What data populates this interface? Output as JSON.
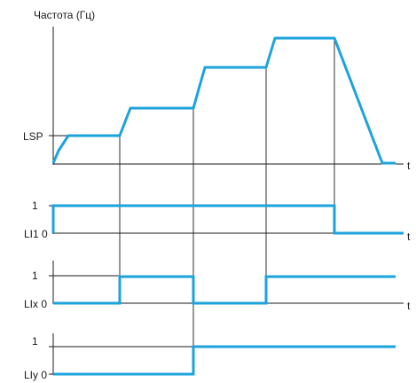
{
  "title": "Частота (Гц)",
  "speed_label": "LSP",
  "time_label": "t",
  "signals": [
    {
      "name": "LI1",
      "high_label": "1",
      "low_label": "LI1 0"
    },
    {
      "name": "LIx",
      "high_label": "1",
      "low_label": "LIx 0"
    },
    {
      "name": "LIy",
      "high_label": "1",
      "low_label": "LIy 0"
    }
  ],
  "colors": {
    "trace": "#1ca3dc",
    "axis": "#1a1a1a"
  }
}
